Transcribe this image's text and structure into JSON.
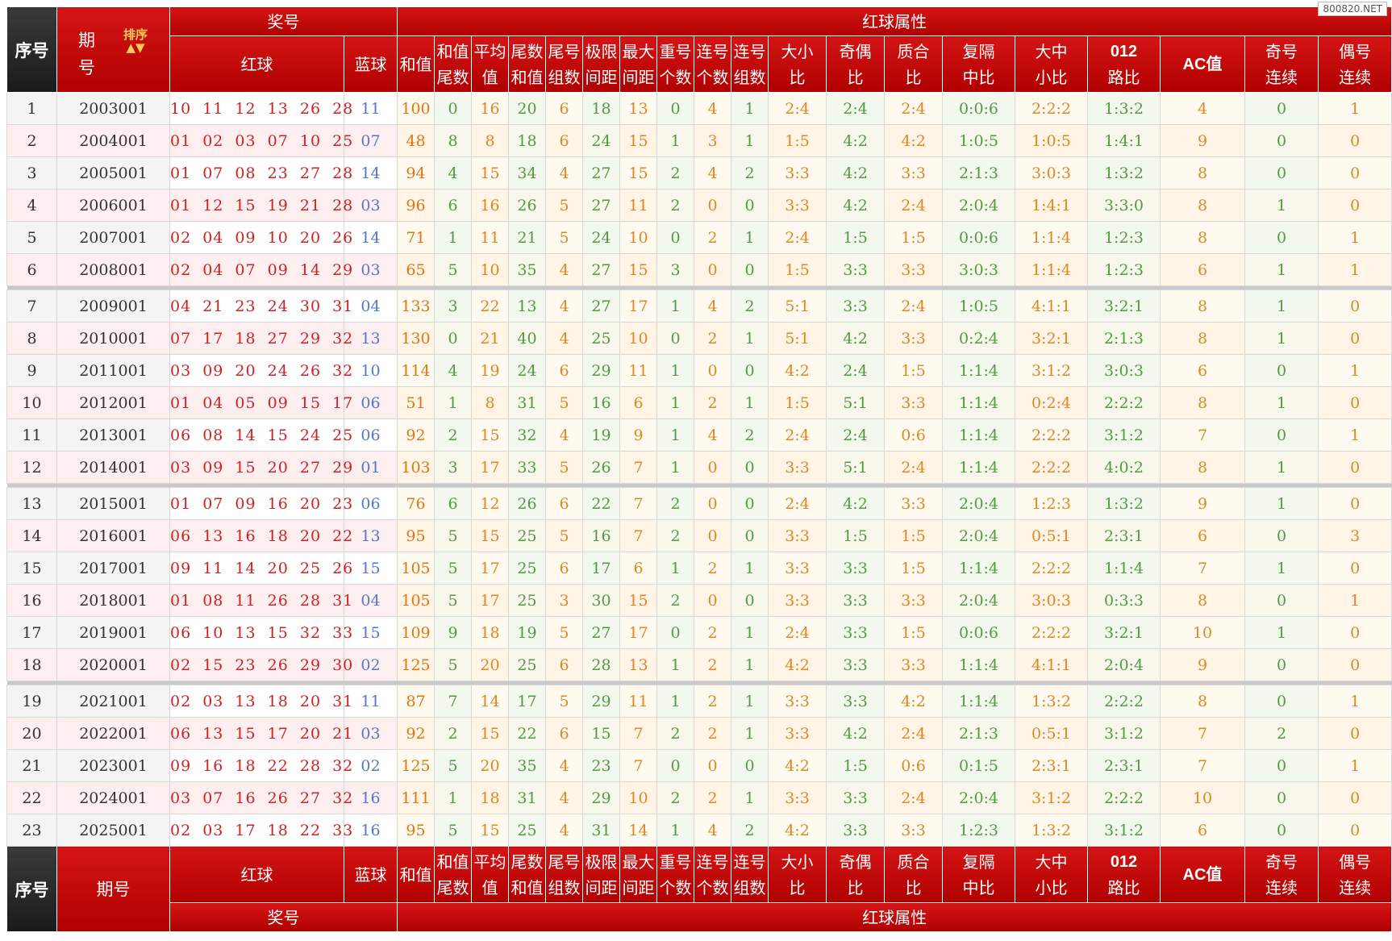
{
  "watermark": "800820.NET",
  "header": {
    "seq": "序号",
    "period": "期号",
    "period_split": [
      "期",
      "号"
    ],
    "sort": "排序",
    "prize": "奖号",
    "red_attr": "红球属性",
    "red": "红球",
    "blue": "蓝球",
    "attrs": [
      "和值",
      "和值尾数",
      "平均值",
      "尾数和值",
      "尾号组数",
      "极限间距",
      "最大间距",
      "重号个数",
      "连号个数",
      "连号组数",
      "大小比",
      "奇偶比",
      "质合比",
      "复隔中比",
      "大中小比",
      "012路比",
      "AC值",
      "奇号连续",
      "偶号连续"
    ]
  },
  "rows": [
    {
      "seq": "1",
      "period": "2003001",
      "red": "10 11 12 13 26 28",
      "blue": "11",
      "v": [
        "100",
        "0",
        "16",
        "20",
        "6",
        "18",
        "13",
        "0",
        "4",
        "1",
        "2:4",
        "2:4",
        "2:4",
        "0:0:6",
        "2:2:2",
        "1:3:2",
        "4",
        "0",
        "1"
      ]
    },
    {
      "seq": "2",
      "period": "2004001",
      "red": "01 02 03 07 10 25",
      "blue": "07",
      "v": [
        "48",
        "8",
        "8",
        "18",
        "6",
        "24",
        "15",
        "1",
        "3",
        "1",
        "1:5",
        "4:2",
        "4:2",
        "1:0:5",
        "1:0:5",
        "1:4:1",
        "9",
        "0",
        "0"
      ]
    },
    {
      "seq": "3",
      "period": "2005001",
      "red": "01 07 08 23 27 28",
      "blue": "14",
      "v": [
        "94",
        "4",
        "15",
        "34",
        "4",
        "27",
        "15",
        "2",
        "4",
        "2",
        "3:3",
        "4:2",
        "3:3",
        "2:1:3",
        "3:0:3",
        "1:3:2",
        "8",
        "0",
        "0"
      ]
    },
    {
      "seq": "4",
      "period": "2006001",
      "red": "01 12 15 19 21 28",
      "blue": "03",
      "v": [
        "96",
        "6",
        "16",
        "26",
        "5",
        "27",
        "11",
        "2",
        "0",
        "0",
        "3:3",
        "4:2",
        "2:4",
        "2:0:4",
        "1:4:1",
        "3:3:0",
        "8",
        "1",
        "0"
      ]
    },
    {
      "seq": "5",
      "period": "2007001",
      "red": "02 04 09 10 20 26",
      "blue": "14",
      "v": [
        "71",
        "1",
        "11",
        "21",
        "5",
        "24",
        "10",
        "0",
        "2",
        "1",
        "2:4",
        "1:5",
        "1:5",
        "0:0:6",
        "1:1:4",
        "1:2:3",
        "8",
        "0",
        "1"
      ]
    },
    {
      "seq": "6",
      "period": "2008001",
      "red": "02 04 07 09 14 29",
      "blue": "03",
      "v": [
        "65",
        "5",
        "10",
        "35",
        "4",
        "27",
        "15",
        "3",
        "0",
        "0",
        "1:5",
        "3:3",
        "3:3",
        "3:0:3",
        "1:1:4",
        "1:2:3",
        "6",
        "1",
        "1"
      ]
    },
    {
      "seq": "7",
      "period": "2009001",
      "red": "04 21 23 24 30 31",
      "blue": "04",
      "v": [
        "133",
        "3",
        "22",
        "13",
        "4",
        "27",
        "17",
        "1",
        "4",
        "2",
        "5:1",
        "3:3",
        "2:4",
        "1:0:5",
        "4:1:1",
        "3:2:1",
        "8",
        "1",
        "0"
      ]
    },
    {
      "seq": "8",
      "period": "2010001",
      "red": "07 17 18 27 29 32",
      "blue": "13",
      "v": [
        "130",
        "0",
        "21",
        "40",
        "4",
        "25",
        "10",
        "0",
        "2",
        "1",
        "5:1",
        "4:2",
        "3:3",
        "0:2:4",
        "3:2:1",
        "2:1:3",
        "8",
        "1",
        "0"
      ]
    },
    {
      "seq": "9",
      "period": "2011001",
      "red": "03 09 20 24 26 32",
      "blue": "10",
      "v": [
        "114",
        "4",
        "19",
        "24",
        "6",
        "29",
        "11",
        "1",
        "0",
        "0",
        "4:2",
        "2:4",
        "1:5",
        "1:1:4",
        "3:1:2",
        "3:0:3",
        "6",
        "0",
        "1"
      ]
    },
    {
      "seq": "10",
      "period": "2012001",
      "red": "01 04 05 09 15 17",
      "blue": "06",
      "v": [
        "51",
        "1",
        "8",
        "31",
        "5",
        "16",
        "6",
        "1",
        "2",
        "1",
        "1:5",
        "5:1",
        "3:3",
        "1:1:4",
        "0:2:4",
        "2:2:2",
        "8",
        "1",
        "0"
      ]
    },
    {
      "seq": "11",
      "period": "2013001",
      "red": "06 08 14 15 24 25",
      "blue": "06",
      "v": [
        "92",
        "2",
        "15",
        "32",
        "4",
        "19",
        "9",
        "1",
        "4",
        "2",
        "2:4",
        "2:4",
        "0:6",
        "1:1:4",
        "2:2:2",
        "3:1:2",
        "7",
        "0",
        "1"
      ]
    },
    {
      "seq": "12",
      "period": "2014001",
      "red": "03 09 15 20 27 29",
      "blue": "01",
      "v": [
        "103",
        "3",
        "17",
        "33",
        "5",
        "26",
        "7",
        "1",
        "0",
        "0",
        "3:3",
        "5:1",
        "2:4",
        "1:1:4",
        "2:2:2",
        "4:0:2",
        "8",
        "1",
        "0"
      ]
    },
    {
      "seq": "13",
      "period": "2015001",
      "red": "01 07 09 16 20 23",
      "blue": "06",
      "v": [
        "76",
        "6",
        "12",
        "26",
        "6",
        "22",
        "7",
        "2",
        "0",
        "0",
        "2:4",
        "4:2",
        "3:3",
        "2:0:4",
        "1:2:3",
        "1:3:2",
        "9",
        "1",
        "0"
      ]
    },
    {
      "seq": "14",
      "period": "2016001",
      "red": "06 13 16 18 20 22",
      "blue": "13",
      "v": [
        "95",
        "5",
        "15",
        "25",
        "5",
        "16",
        "7",
        "2",
        "0",
        "0",
        "3:3",
        "1:5",
        "1:5",
        "2:0:4",
        "0:5:1",
        "2:3:1",
        "6",
        "0",
        "3"
      ]
    },
    {
      "seq": "15",
      "period": "2017001",
      "red": "09 11 14 20 25 26",
      "blue": "15",
      "v": [
        "105",
        "5",
        "17",
        "25",
        "6",
        "17",
        "6",
        "1",
        "2",
        "1",
        "3:3",
        "3:3",
        "1:5",
        "1:1:4",
        "2:2:2",
        "1:1:4",
        "7",
        "1",
        "0"
      ]
    },
    {
      "seq": "16",
      "period": "2018001",
      "red": "01 08 11 26 28 31",
      "blue": "04",
      "v": [
        "105",
        "5",
        "17",
        "25",
        "3",
        "30",
        "15",
        "2",
        "0",
        "0",
        "3:3",
        "3:3",
        "3:3",
        "2:0:4",
        "3:0:3",
        "0:3:3",
        "8",
        "0",
        "1"
      ]
    },
    {
      "seq": "17",
      "period": "2019001",
      "red": "06 10 13 15 32 33",
      "blue": "15",
      "v": [
        "109",
        "9",
        "18",
        "19",
        "5",
        "27",
        "17",
        "0",
        "2",
        "1",
        "2:4",
        "3:3",
        "1:5",
        "0:0:6",
        "2:2:2",
        "3:2:1",
        "10",
        "1",
        "0"
      ]
    },
    {
      "seq": "18",
      "period": "2020001",
      "red": "02 15 23 26 29 30",
      "blue": "02",
      "v": [
        "125",
        "5",
        "20",
        "25",
        "6",
        "28",
        "13",
        "1",
        "2",
        "1",
        "4:2",
        "3:3",
        "3:3",
        "1:1:4",
        "4:1:1",
        "2:0:4",
        "9",
        "0",
        "0"
      ]
    },
    {
      "seq": "19",
      "period": "2021001",
      "red": "02 03 13 18 20 31",
      "blue": "11",
      "v": [
        "87",
        "7",
        "14",
        "17",
        "5",
        "29",
        "11",
        "1",
        "2",
        "1",
        "3:3",
        "3:3",
        "4:2",
        "1:1:4",
        "1:3:2",
        "2:2:2",
        "8",
        "0",
        "1"
      ]
    },
    {
      "seq": "20",
      "period": "2022001",
      "red": "06 13 15 17 20 21",
      "blue": "03",
      "v": [
        "92",
        "2",
        "15",
        "22",
        "6",
        "15",
        "7",
        "2",
        "2",
        "1",
        "3:3",
        "4:2",
        "2:4",
        "2:1:3",
        "0:5:1",
        "3:1:2",
        "7",
        "2",
        "0"
      ]
    },
    {
      "seq": "21",
      "period": "2023001",
      "red": "09 16 18 22 28 32",
      "blue": "02",
      "v": [
        "125",
        "5",
        "20",
        "35",
        "4",
        "23",
        "7",
        "0",
        "0",
        "0",
        "4:2",
        "1:5",
        "0:6",
        "0:1:5",
        "2:3:1",
        "2:3:1",
        "7",
        "0",
        "1"
      ]
    },
    {
      "seq": "22",
      "period": "2024001",
      "red": "03 07 16 26 27 32",
      "blue": "16",
      "v": [
        "111",
        "1",
        "18",
        "31",
        "4",
        "29",
        "10",
        "2",
        "2",
        "1",
        "3:3",
        "3:3",
        "2:4",
        "2:0:4",
        "3:1:2",
        "2:2:2",
        "10",
        "0",
        "0"
      ]
    },
    {
      "seq": "23",
      "period": "2025001",
      "red": "02 03 17 18 22 33",
      "blue": "16",
      "v": [
        "95",
        "5",
        "15",
        "25",
        "4",
        "31",
        "14",
        "1",
        "4",
        "2",
        "4:2",
        "3:3",
        "3:3",
        "1:2:3",
        "1:3:2",
        "3:1:2",
        "6",
        "0",
        "0"
      ]
    }
  ]
}
